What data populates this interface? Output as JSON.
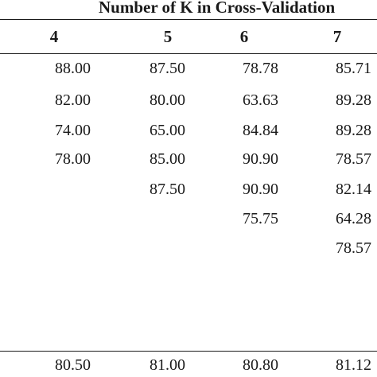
{
  "table": {
    "group_header": "Number of K in Cross-Validation",
    "columns": [
      "4",
      "5",
      "6",
      "7"
    ],
    "rows": [
      [
        "88.00",
        "87.50",
        "78.78",
        "85.71"
      ],
      [
        "82.00",
        "80.00",
        "63.63",
        "89.28"
      ],
      [
        "74.00",
        "65.00",
        "84.84",
        "89.28"
      ],
      [
        "78.00",
        "85.00",
        "90.90",
        "78.57"
      ],
      [
        "",
        "87.50",
        "90.90",
        "82.14"
      ],
      [
        "",
        "",
        "75.75",
        "64.28"
      ],
      [
        "",
        "",
        "",
        "78.57"
      ],
      [
        "",
        "",
        "",
        ""
      ],
      [
        "",
        "",
        "",
        ""
      ]
    ],
    "summary": [
      "80.50",
      "81.00",
      "80.80",
      "81.12"
    ]
  }
}
